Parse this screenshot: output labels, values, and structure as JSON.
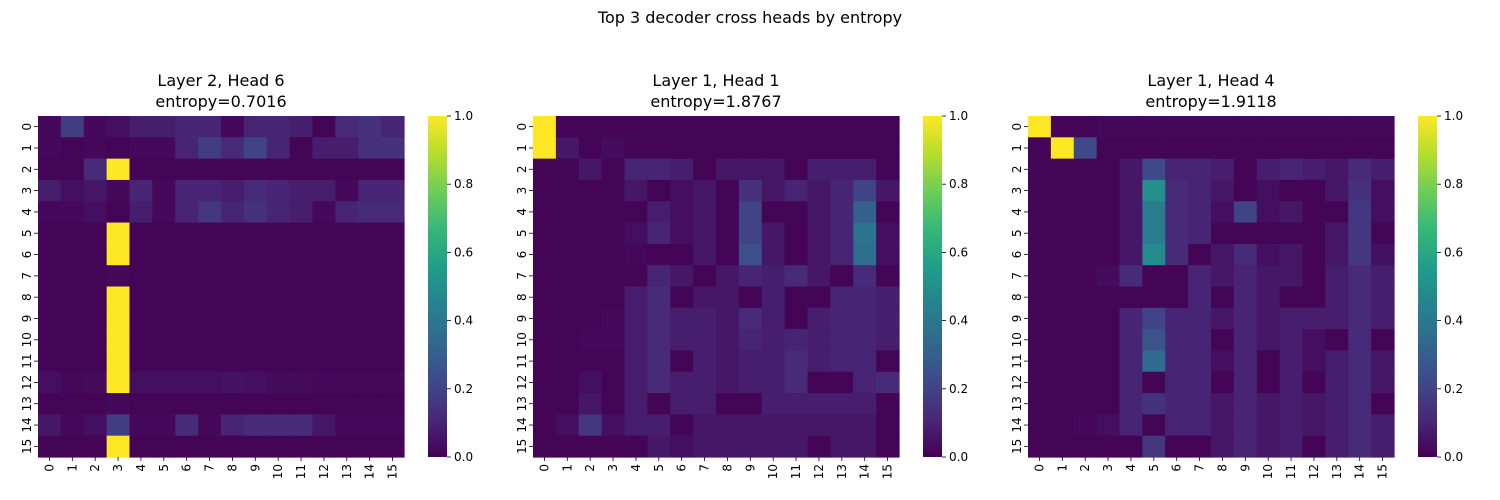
{
  "suptitle": "Top 3 decoder cross heads by entropy",
  "chart_data": [
    {
      "type": "heatmap",
      "title_line1": "Layer 2, Head 6",
      "title_line2": "entropy=0.7016",
      "x": [
        "0",
        "1",
        "2",
        "3",
        "4",
        "5",
        "6",
        "7",
        "8",
        "9",
        "10",
        "11",
        "12",
        "13",
        "14",
        "15"
      ],
      "y": [
        "0",
        "1",
        "2",
        "3",
        "4",
        "5",
        "6",
        "7",
        "8",
        "9",
        "10",
        "11",
        "12",
        "13",
        "14",
        "15"
      ],
      "zlim": [
        0,
        1
      ],
      "colorbar_ticks": [
        "0.0",
        "0.2",
        "0.4",
        "0.6",
        "0.8",
        "1.0"
      ],
      "colormap": "viridis",
      "values": [
        [
          0.02,
          0.18,
          0.02,
          0.04,
          0.08,
          0.08,
          0.1,
          0.1,
          0.02,
          0.1,
          0.1,
          0.08,
          0.01,
          0.12,
          0.14,
          0.1
        ],
        [
          0.02,
          0.01,
          0.02,
          0.01,
          0.02,
          0.02,
          0.1,
          0.18,
          0.12,
          0.2,
          0.1,
          0.01,
          0.08,
          0.08,
          0.14,
          0.14
        ],
        [
          0.01,
          0.01,
          0.12,
          1.0,
          0.01,
          0.01,
          0.01,
          0.01,
          0.01,
          0.01,
          0.01,
          0.01,
          0.01,
          0.01,
          0.01,
          0.01
        ],
        [
          0.08,
          0.04,
          0.06,
          0.02,
          0.1,
          0.02,
          0.1,
          0.1,
          0.08,
          0.12,
          0.1,
          0.08,
          0.08,
          0.02,
          0.1,
          0.1
        ],
        [
          0.02,
          0.02,
          0.04,
          0.01,
          0.08,
          0.02,
          0.1,
          0.16,
          0.1,
          0.14,
          0.1,
          0.08,
          0.02,
          0.1,
          0.12,
          0.12
        ],
        [
          0.01,
          0.01,
          0.01,
          1.0,
          0.01,
          0.01,
          0.01,
          0.01,
          0.01,
          0.01,
          0.01,
          0.01,
          0.01,
          0.01,
          0.01,
          0.01
        ],
        [
          0.01,
          0.01,
          0.01,
          1.0,
          0.01,
          0.01,
          0.01,
          0.01,
          0.01,
          0.01,
          0.01,
          0.01,
          0.01,
          0.01,
          0.01,
          0.01
        ],
        [
          0.01,
          0.01,
          0.01,
          0.02,
          0.01,
          0.01,
          0.01,
          0.01,
          0.01,
          0.01,
          0.01,
          0.01,
          0.01,
          0.01,
          0.01,
          0.01
        ],
        [
          0.01,
          0.01,
          0.01,
          1.0,
          0.01,
          0.01,
          0.01,
          0.01,
          0.01,
          0.01,
          0.01,
          0.01,
          0.01,
          0.01,
          0.01,
          0.01
        ],
        [
          0.01,
          0.01,
          0.01,
          1.0,
          0.01,
          0.01,
          0.01,
          0.01,
          0.01,
          0.01,
          0.01,
          0.01,
          0.01,
          0.01,
          0.01,
          0.01
        ],
        [
          0.01,
          0.01,
          0.01,
          1.0,
          0.01,
          0.01,
          0.01,
          0.01,
          0.01,
          0.01,
          0.01,
          0.01,
          0.01,
          0.01,
          0.01,
          0.01
        ],
        [
          0.01,
          0.01,
          0.01,
          1.0,
          0.01,
          0.01,
          0.01,
          0.01,
          0.01,
          0.01,
          0.01,
          0.01,
          0.01,
          0.01,
          0.01,
          0.01
        ],
        [
          0.04,
          0.02,
          0.03,
          1.0,
          0.04,
          0.04,
          0.04,
          0.04,
          0.05,
          0.04,
          0.03,
          0.03,
          0.02,
          0.02,
          0.02,
          0.02
        ],
        [
          0.01,
          0.01,
          0.01,
          0.02,
          0.01,
          0.01,
          0.01,
          0.01,
          0.01,
          0.01,
          0.01,
          0.01,
          0.01,
          0.01,
          0.01,
          0.01
        ],
        [
          0.06,
          0.02,
          0.04,
          0.18,
          0.02,
          0.02,
          0.12,
          0.02,
          0.1,
          0.12,
          0.12,
          0.12,
          0.06,
          0.02,
          0.02,
          0.02
        ],
        [
          0.01,
          0.01,
          0.01,
          1.0,
          0.01,
          0.01,
          0.01,
          0.01,
          0.01,
          0.01,
          0.01,
          0.01,
          0.01,
          0.01,
          0.01,
          0.01
        ]
      ]
    },
    {
      "type": "heatmap",
      "title_line1": "Layer 1, Head 1",
      "title_line2": "entropy=1.8767",
      "x": [
        "0",
        "1",
        "2",
        "3",
        "4",
        "5",
        "6",
        "7",
        "8",
        "9",
        "10",
        "11",
        "12",
        "13",
        "14",
        "15"
      ],
      "y": [
        "0",
        "1",
        "2",
        "3",
        "4",
        "5",
        "6",
        "7",
        "8",
        "9",
        "10",
        "11",
        "12",
        "13",
        "14",
        "15"
      ],
      "zlim": [
        0,
        1
      ],
      "colorbar_ticks": [
        "0.0",
        "0.2",
        "0.4",
        "0.6",
        "0.8",
        "1.0"
      ],
      "colormap": "viridis",
      "values": [
        [
          1.0,
          0.01,
          0.01,
          0.01,
          0.01,
          0.01,
          0.01,
          0.01,
          0.01,
          0.01,
          0.01,
          0.01,
          0.01,
          0.01,
          0.01,
          0.01
        ],
        [
          1.0,
          0.06,
          0.01,
          0.03,
          0.01,
          0.01,
          0.01,
          0.01,
          0.01,
          0.01,
          0.01,
          0.01,
          0.01,
          0.01,
          0.01,
          0.01
        ],
        [
          0.01,
          0.01,
          0.06,
          0.01,
          0.1,
          0.1,
          0.08,
          0.01,
          0.06,
          0.06,
          0.06,
          0.01,
          0.08,
          0.08,
          0.08,
          0.01
        ],
        [
          0.01,
          0.01,
          0.01,
          0.01,
          0.06,
          0.01,
          0.04,
          0.06,
          0.01,
          0.14,
          0.06,
          0.1,
          0.06,
          0.1,
          0.2,
          0.06
        ],
        [
          0.01,
          0.01,
          0.01,
          0.01,
          0.01,
          0.08,
          0.04,
          0.06,
          0.01,
          0.2,
          0.01,
          0.01,
          0.06,
          0.1,
          0.3,
          0.01
        ],
        [
          0.01,
          0.01,
          0.01,
          0.01,
          0.04,
          0.1,
          0.04,
          0.06,
          0.01,
          0.2,
          0.06,
          0.01,
          0.06,
          0.1,
          0.38,
          0.04
        ],
        [
          0.01,
          0.01,
          0.01,
          0.01,
          0.02,
          0.01,
          0.01,
          0.06,
          0.01,
          0.24,
          0.06,
          0.01,
          0.06,
          0.1,
          0.36,
          0.04
        ],
        [
          0.01,
          0.01,
          0.01,
          0.01,
          0.01,
          0.1,
          0.06,
          0.01,
          0.06,
          0.1,
          0.08,
          0.12,
          0.06,
          0.01,
          0.12,
          0.01
        ],
        [
          0.01,
          0.01,
          0.01,
          0.01,
          0.08,
          0.12,
          0.01,
          0.06,
          0.06,
          0.01,
          0.08,
          0.01,
          0.01,
          0.1,
          0.1,
          0.08
        ],
        [
          0.01,
          0.01,
          0.01,
          0.02,
          0.08,
          0.12,
          0.08,
          0.08,
          0.06,
          0.12,
          0.08,
          0.01,
          0.08,
          0.1,
          0.1,
          0.08
        ],
        [
          0.01,
          0.01,
          0.02,
          0.02,
          0.08,
          0.12,
          0.08,
          0.08,
          0.06,
          0.1,
          0.08,
          0.1,
          0.08,
          0.1,
          0.1,
          0.08
        ],
        [
          0.01,
          0.01,
          0.01,
          0.01,
          0.08,
          0.12,
          0.01,
          0.08,
          0.06,
          0.08,
          0.08,
          0.12,
          0.08,
          0.1,
          0.1,
          0.01
        ],
        [
          0.01,
          0.01,
          0.04,
          0.01,
          0.08,
          0.12,
          0.08,
          0.08,
          0.06,
          0.08,
          0.08,
          0.12,
          0.01,
          0.01,
          0.1,
          0.12
        ],
        [
          0.01,
          0.01,
          0.06,
          0.01,
          0.08,
          0.01,
          0.08,
          0.08,
          0.01,
          0.01,
          0.08,
          0.08,
          0.08,
          0.08,
          0.08,
          0.01
        ],
        [
          0.01,
          0.04,
          0.16,
          0.04,
          0.08,
          0.08,
          0.01,
          0.06,
          0.06,
          0.06,
          0.06,
          0.06,
          0.06,
          0.06,
          0.06,
          0.01
        ],
        [
          0.01,
          0.01,
          0.01,
          0.01,
          0.01,
          0.06,
          0.04,
          0.06,
          0.06,
          0.06,
          0.06,
          0.06,
          0.01,
          0.06,
          0.06,
          0.01
        ]
      ]
    },
    {
      "type": "heatmap",
      "title_line1": "Layer 1, Head 4",
      "title_line2": "entropy=1.9118",
      "x": [
        "0",
        "1",
        "2",
        "3",
        "4",
        "5",
        "6",
        "7",
        "8",
        "9",
        "10",
        "11",
        "12",
        "13",
        "14",
        "15"
      ],
      "y": [
        "0",
        "1",
        "2",
        "3",
        "4",
        "5",
        "6",
        "7",
        "8",
        "9",
        "10",
        "11",
        "12",
        "13",
        "14",
        "15"
      ],
      "zlim": [
        0,
        1
      ],
      "colorbar_ticks": [
        "0.0",
        "0.2",
        "0.4",
        "0.6",
        "0.8",
        "1.0"
      ],
      "colormap": "viridis",
      "values": [
        [
          1.0,
          0.01,
          0.01,
          0.02,
          0.02,
          0.02,
          0.02,
          0.02,
          0.02,
          0.02,
          0.02,
          0.02,
          0.02,
          0.02,
          0.02,
          0.02
        ],
        [
          0.01,
          1.0,
          0.22,
          0.01,
          0.01,
          0.01,
          0.01,
          0.01,
          0.01,
          0.01,
          0.01,
          0.01,
          0.01,
          0.01,
          0.01,
          0.01
        ],
        [
          0.01,
          0.01,
          0.01,
          0.01,
          0.06,
          0.22,
          0.1,
          0.1,
          0.08,
          0.01,
          0.08,
          0.1,
          0.08,
          0.06,
          0.12,
          0.08
        ],
        [
          0.01,
          0.01,
          0.01,
          0.01,
          0.06,
          0.5,
          0.12,
          0.1,
          0.06,
          0.01,
          0.04,
          0.01,
          0.01,
          0.06,
          0.14,
          0.04
        ],
        [
          0.01,
          0.01,
          0.01,
          0.01,
          0.06,
          0.42,
          0.12,
          0.1,
          0.04,
          0.2,
          0.04,
          0.06,
          0.01,
          0.01,
          0.16,
          0.04
        ],
        [
          0.01,
          0.01,
          0.01,
          0.01,
          0.06,
          0.42,
          0.12,
          0.1,
          0.01,
          0.01,
          0.01,
          0.01,
          0.01,
          0.06,
          0.16,
          0.01
        ],
        [
          0.01,
          0.01,
          0.01,
          0.01,
          0.06,
          0.48,
          0.12,
          0.01,
          0.06,
          0.12,
          0.04,
          0.06,
          0.01,
          0.06,
          0.16,
          0.04
        ],
        [
          0.01,
          0.01,
          0.01,
          0.03,
          0.12,
          0.01,
          0.01,
          0.1,
          0.06,
          0.1,
          0.06,
          0.06,
          0.01,
          0.08,
          0.12,
          0.08
        ],
        [
          0.01,
          0.01,
          0.01,
          0.01,
          0.01,
          0.01,
          0.01,
          0.1,
          0.01,
          0.1,
          0.06,
          0.01,
          0.01,
          0.08,
          0.12,
          0.08
        ],
        [
          0.01,
          0.01,
          0.01,
          0.01,
          0.1,
          0.2,
          0.1,
          0.1,
          0.06,
          0.1,
          0.06,
          0.08,
          0.08,
          0.08,
          0.12,
          0.08
        ],
        [
          0.01,
          0.01,
          0.01,
          0.01,
          0.1,
          0.26,
          0.1,
          0.1,
          0.01,
          0.1,
          0.06,
          0.08,
          0.04,
          0.01,
          0.12,
          0.01
        ],
        [
          0.01,
          0.01,
          0.01,
          0.01,
          0.1,
          0.34,
          0.1,
          0.1,
          0.04,
          0.1,
          0.01,
          0.08,
          0.04,
          0.08,
          0.12,
          0.06
        ],
        [
          0.01,
          0.01,
          0.01,
          0.01,
          0.1,
          0.01,
          0.1,
          0.1,
          0.01,
          0.1,
          0.01,
          0.08,
          0.01,
          0.08,
          0.12,
          0.06
        ],
        [
          0.01,
          0.01,
          0.01,
          0.01,
          0.1,
          0.14,
          0.1,
          0.1,
          0.06,
          0.1,
          0.06,
          0.08,
          0.06,
          0.08,
          0.12,
          0.01
        ],
        [
          0.01,
          0.01,
          0.02,
          0.04,
          0.1,
          0.01,
          0.1,
          0.1,
          0.06,
          0.1,
          0.06,
          0.08,
          0.06,
          0.08,
          0.12,
          0.08
        ],
        [
          0.01,
          0.01,
          0.01,
          0.01,
          0.01,
          0.16,
          0.01,
          0.01,
          0.06,
          0.1,
          0.06,
          0.08,
          0.01,
          0.08,
          0.12,
          0.08
        ]
      ]
    }
  ]
}
